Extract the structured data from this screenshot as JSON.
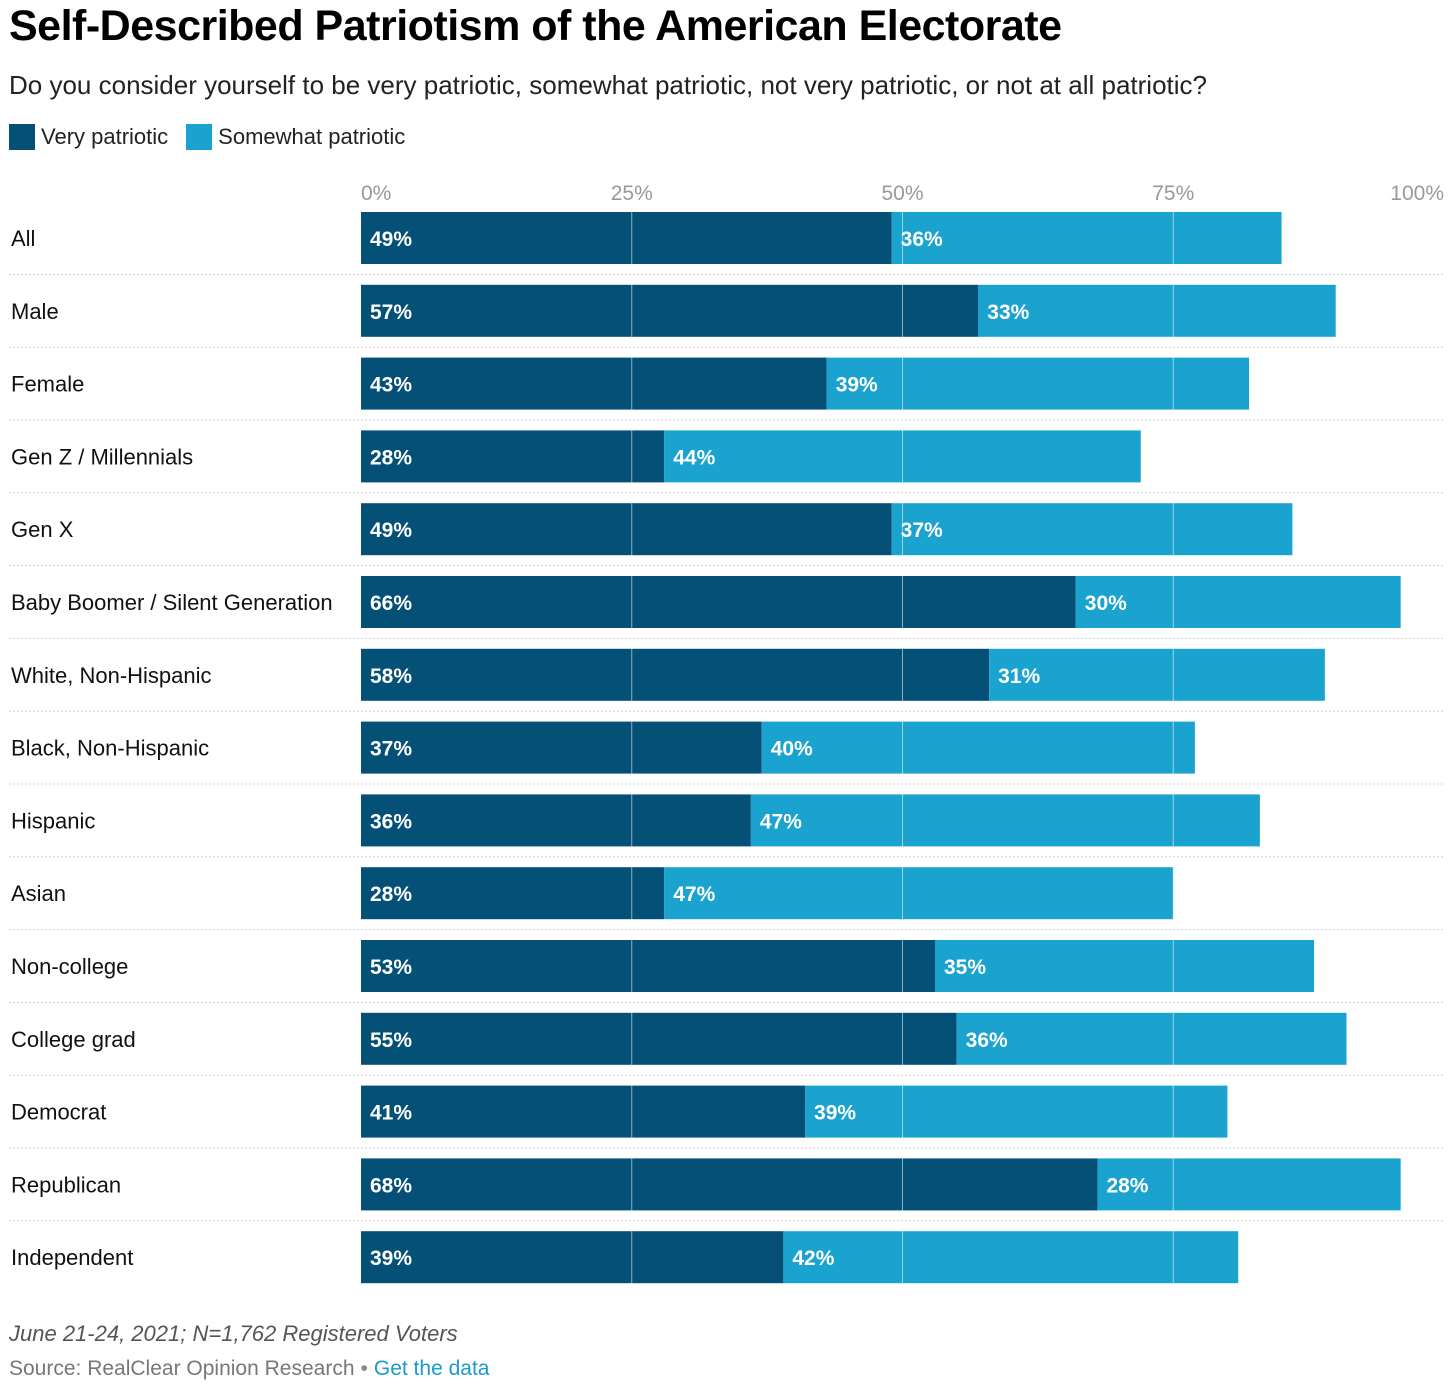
{
  "title": "Self-Described Patriotism of the American Electorate",
  "subtitle": "Do you consider yourself to be very patriotic, somewhat patriotic, not very patriotic, or not at all patriotic?",
  "note": "June 21-24, 2021; N=1,762 Registered Voters",
  "source": {
    "label": "Source: RealClear Opinion Research",
    "separator": "•",
    "link": "Get the data"
  },
  "colors": {
    "very": "#045077",
    "somewhat": "#1ba3cf",
    "grid": "#cccccc",
    "tick": "#999999"
  },
  "chart_data": {
    "type": "bar",
    "orientation": "horizontal",
    "stacked": true,
    "xlim": [
      0,
      100
    ],
    "x_ticks": [
      "0%",
      "25%",
      "50%",
      "75%",
      "100%"
    ],
    "x_tick_values": [
      0,
      25,
      50,
      75,
      100
    ],
    "legend_position": "top-left",
    "categories": [
      "All",
      "Male",
      "Female",
      "Gen Z / Millennials",
      "Gen X",
      "Baby Boomer / Silent Generation",
      "White, Non-Hispanic",
      "Black, Non-Hispanic",
      "Hispanic",
      "Asian",
      "Non-college",
      "College grad",
      "Democrat",
      "Republican",
      "Independent"
    ],
    "series": [
      {
        "name": "Very patriotic",
        "values": [
          49,
          57,
          43,
          28,
          49,
          66,
          58,
          37,
          36,
          28,
          53,
          55,
          41,
          68,
          39
        ]
      },
      {
        "name": "Somewhat patriotic",
        "values": [
          36,
          33,
          39,
          44,
          37,
          30,
          31,
          40,
          47,
          47,
          35,
          36,
          39,
          28,
          42
        ]
      }
    ]
  }
}
